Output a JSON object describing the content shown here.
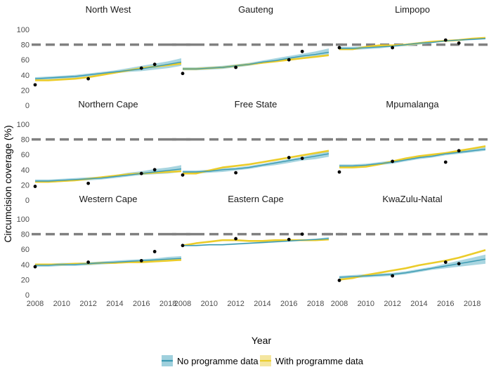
{
  "chart_data": {
    "type": "line",
    "xlabel": "Year",
    "ylabel": "Circumcision coverage (%)",
    "xlim": [
      2008,
      2019
    ],
    "ylim": [
      0,
      100
    ],
    "x_ticks": [
      2008,
      2010,
      2012,
      2014,
      2016,
      2018
    ],
    "y_ticks": [
      0,
      20,
      40,
      60,
      80,
      100
    ],
    "target_line": 80,
    "colors": {
      "no_programme": "#3b9ab2",
      "no_programme_band": "#9fd0dd",
      "with_programme": "#ebcc2a",
      "target": "#808080",
      "points": "#000000"
    },
    "legend": {
      "position": "bottom",
      "items": [
        {
          "key": "no_programme",
          "label": "No programme data"
        },
        {
          "key": "with_programme",
          "label": "With programme data"
        }
      ]
    },
    "years": [
      2008,
      2009,
      2010,
      2011,
      2012,
      2013,
      2014,
      2015,
      2016,
      2017,
      2018,
      2019
    ],
    "panels": [
      {
        "name": "North West",
        "no_programme": [
          35,
          36,
          37,
          38,
          40,
          42,
          44,
          46,
          48,
          51,
          54,
          57
        ],
        "no_lower": [
          33,
          34,
          35,
          36,
          38,
          40,
          42,
          44,
          45,
          47,
          49,
          52
        ],
        "no_upper": [
          37,
          38,
          39,
          40,
          42,
          44,
          46,
          49,
          52,
          55,
          58,
          62
        ],
        "with_programme": [
          33,
          33,
          34,
          35,
          37,
          40,
          43,
          46,
          49,
          51,
          53,
          55
        ],
        "observed": [
          [
            2008,
            27
          ],
          [
            2012,
            35
          ],
          [
            2016,
            49
          ],
          [
            2017,
            54
          ]
        ]
      },
      {
        "name": "Gauteng",
        "no_programme": [
          48,
          48,
          49,
          50,
          52,
          54,
          57,
          59,
          62,
          65,
          67,
          70
        ],
        "no_lower": [
          46,
          46,
          47,
          48,
          50,
          52,
          55,
          57,
          59,
          61,
          63,
          65
        ],
        "no_upper": [
          50,
          50,
          51,
          52,
          54,
          56,
          59,
          62,
          65,
          68,
          71,
          75
        ],
        "with_programme": [
          48,
          48,
          49,
          50,
          52,
          54,
          56,
          58,
          60,
          62,
          64,
          66
        ],
        "observed": [
          [
            2008,
            42
          ],
          [
            2012,
            50
          ],
          [
            2016,
            60
          ],
          [
            2017,
            71
          ]
        ]
      },
      {
        "name": "Limpopo",
        "no_programme": [
          75,
          75,
          76,
          77,
          78,
          80,
          82,
          83,
          85,
          86,
          87,
          88
        ],
        "no_lower": [
          73,
          73,
          74,
          75,
          77,
          78,
          80,
          82,
          84,
          85,
          86,
          87
        ],
        "no_upper": [
          77,
          77,
          78,
          79,
          80,
          81,
          83,
          85,
          86,
          87,
          88,
          89
        ],
        "with_programme": [
          74,
          74,
          77,
          79,
          79,
          80,
          82,
          84,
          85,
          86,
          88,
          89
        ],
        "observed": [
          [
            2008,
            76
          ],
          [
            2012,
            76
          ],
          [
            2016,
            86
          ],
          [
            2017,
            82
          ]
        ]
      },
      {
        "name": "Northern Cape",
        "no_programme": [
          25,
          25,
          26,
          27,
          28,
          29,
          31,
          33,
          35,
          37,
          39,
          41
        ],
        "no_lower": [
          23,
          23,
          24,
          25,
          26,
          27,
          29,
          31,
          33,
          34,
          35,
          37
        ],
        "no_upper": [
          27,
          27,
          28,
          29,
          30,
          31,
          33,
          36,
          38,
          41,
          43,
          46
        ],
        "with_programme": [
          24,
          24,
          25,
          26,
          28,
          30,
          32,
          34,
          35,
          36,
          37,
          38
        ],
        "observed": [
          [
            2008,
            18
          ],
          [
            2012,
            22
          ],
          [
            2016,
            35
          ],
          [
            2017,
            40
          ]
        ]
      },
      {
        "name": "Free State",
        "no_programme": [
          37,
          37,
          38,
          40,
          41,
          43,
          46,
          49,
          52,
          55,
          58,
          61
        ],
        "no_lower": [
          35,
          35,
          36,
          37,
          39,
          41,
          44,
          46,
          49,
          52,
          54,
          57
        ],
        "no_upper": [
          39,
          39,
          40,
          42,
          43,
          45,
          48,
          51,
          54,
          57,
          61,
          65
        ],
        "with_programme": [
          35,
          35,
          39,
          43,
          45,
          47,
          50,
          53,
          56,
          59,
          62,
          65
        ],
        "observed": [
          [
            2008,
            33
          ],
          [
            2012,
            36
          ],
          [
            2016,
            56
          ],
          [
            2017,
            55
          ]
        ]
      },
      {
        "name": "Mpumalanga",
        "no_programme": [
          45,
          45,
          46,
          48,
          50,
          53,
          56,
          58,
          61,
          63,
          65,
          67
        ],
        "no_lower": [
          43,
          43,
          44,
          46,
          48,
          51,
          54,
          56,
          59,
          61,
          63,
          65
        ],
        "no_upper": [
          47,
          47,
          48,
          50,
          52,
          55,
          58,
          60,
          63,
          65,
          67,
          70
        ],
        "with_programme": [
          43,
          43,
          44,
          47,
          51,
          55,
          58,
          60,
          62,
          65,
          68,
          71
        ],
        "observed": [
          [
            2008,
            37
          ],
          [
            2012,
            51
          ],
          [
            2016,
            50
          ],
          [
            2017,
            65
          ]
        ]
      },
      {
        "name": "Western Cape",
        "no_programme": [
          39,
          39,
          40,
          40,
          41,
          42,
          43,
          44,
          45,
          46,
          47,
          48
        ],
        "no_lower": [
          37,
          37,
          38,
          38,
          39,
          40,
          41,
          42,
          43,
          44,
          45,
          46
        ],
        "no_upper": [
          41,
          41,
          42,
          42,
          43,
          44,
          45,
          46,
          47,
          48,
          50,
          51
        ],
        "with_programme": [
          40,
          40,
          40,
          41,
          41,
          42,
          42,
          43,
          43,
          44,
          45,
          46
        ],
        "observed": [
          [
            2008,
            37
          ],
          [
            2012,
            43
          ],
          [
            2016,
            45
          ],
          [
            2017,
            57
          ]
        ]
      },
      {
        "name": "Eastern Cape",
        "no_programme": [
          65,
          65,
          66,
          66,
          67,
          68,
          69,
          70,
          71,
          72,
          73,
          74
        ],
        "no_lower": [
          64,
          64,
          65,
          65,
          66,
          67,
          68,
          69,
          70,
          71,
          72,
          73
        ],
        "no_upper": [
          66,
          66,
          67,
          67,
          68,
          69,
          70,
          71,
          72,
          73,
          74,
          76
        ],
        "with_programme": [
          65,
          68,
          70,
          72,
          72,
          71,
          71,
          72,
          72,
          72,
          72,
          73
        ],
        "observed": [
          [
            2008,
            65
          ],
          [
            2012,
            74
          ],
          [
            2016,
            73
          ],
          [
            2017,
            80
          ]
        ]
      },
      {
        "name": "KwaZulu-Natal",
        "no_programme": [
          23,
          24,
          25,
          26,
          27,
          29,
          32,
          35,
          38,
          41,
          44,
          47
        ],
        "no_lower": [
          21,
          22,
          23,
          24,
          25,
          27,
          30,
          33,
          35,
          37,
          39,
          41
        ],
        "no_upper": [
          25,
          26,
          27,
          28,
          29,
          31,
          34,
          37,
          41,
          45,
          49,
          53
        ],
        "with_programme": [
          20,
          22,
          26,
          29,
          32,
          35,
          39,
          42,
          45,
          49,
          54,
          59
        ],
        "observed": [
          [
            2008,
            19
          ],
          [
            2012,
            25
          ],
          [
            2016,
            43
          ],
          [
            2017,
            41
          ]
        ]
      }
    ]
  }
}
